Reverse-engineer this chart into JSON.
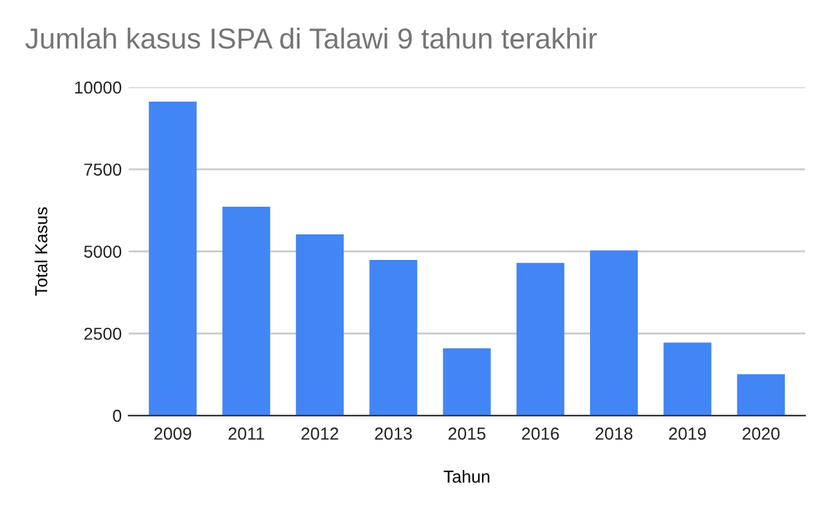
{
  "chart_data": {
    "type": "bar",
    "title": "Jumlah kasus ISPA di Talawi 9 tahun terakhir",
    "xlabel": "Tahun",
    "ylabel": "Total Kasus",
    "categories": [
      "2009",
      "2011",
      "2012",
      "2013",
      "2015",
      "2016",
      "2018",
      "2019",
      "2020"
    ],
    "values": [
      9560,
      6360,
      5520,
      4740,
      2050,
      4650,
      5030,
      2220,
      1260
    ],
    "color": "#4285f4",
    "ylim": [
      0,
      10000
    ],
    "yticks": [
      0,
      2500,
      5000,
      7500,
      10000
    ],
    "grid": "y",
    "legend": false
  }
}
